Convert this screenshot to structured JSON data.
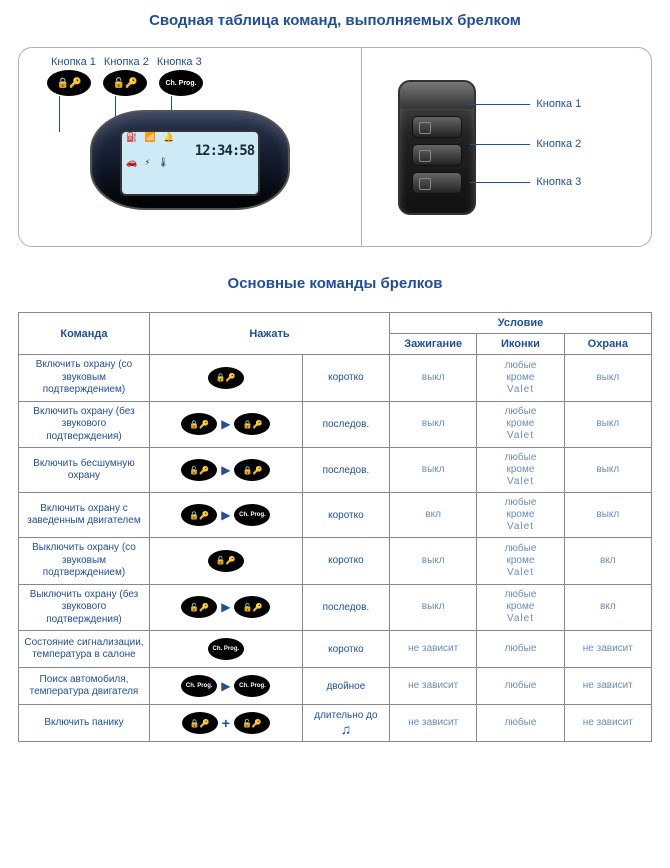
{
  "titles": {
    "main": "Сводная таблица команд, выполняемых брелком",
    "sub": "Основные команды брелков"
  },
  "diagram": {
    "left_labels": [
      "Кнопка 1",
      "Кнопка 2",
      "Кнопка 3"
    ],
    "oval_icons": [
      "🔒🔑",
      "🔓🔑",
      "Ch. Prog."
    ],
    "screen_time": "12:34:58",
    "screen_icons": "⛽ 📶 🔔",
    "screen_car_row": "🚗 ⚡ 🌡",
    "right_labels": [
      "Кнопка 1",
      "Кнопка 2",
      "Кнопка 3"
    ]
  },
  "table": {
    "headers": {
      "command": "Команда",
      "press": "Нажать",
      "condition": "Условие",
      "ignition": "Зажигание",
      "icons": "Иконки",
      "guard": "Охрана"
    },
    "icon_labels": {
      "b1": "🔒🔑",
      "b2": "🔓🔑",
      "b3": "Ch. Prog."
    },
    "valet_text": "любые кроме Valet",
    "rows": [
      {
        "cmd": "Включить охрану (со звуковым подтверждением)",
        "press": {
          "seq": [
            "b1"
          ],
          "join": ""
        },
        "dur": "коротко",
        "ign": "выкл",
        "ico": "valet",
        "gd": "выкл"
      },
      {
        "cmd": "Включить охрану (без звукового подтверждения)",
        "press": {
          "seq": [
            "b1",
            "b1"
          ],
          "join": "arrow"
        },
        "dur": "последов.",
        "ign": "выкл",
        "ico": "valet",
        "gd": "выкл"
      },
      {
        "cmd": "Включить бесшумную охрану",
        "press": {
          "seq": [
            "b2",
            "b1"
          ],
          "join": "arrow"
        },
        "dur": "последов.",
        "ign": "выкл",
        "ico": "valet",
        "gd": "выкл"
      },
      {
        "cmd": "Включить охрану с заведенным двигателем",
        "press": {
          "seq": [
            "b1",
            "b3"
          ],
          "join": "arrow"
        },
        "dur": "коротко",
        "ign": "вкл",
        "ico": "valet",
        "gd": "выкл"
      },
      {
        "cmd": "Выключить охрану (со звуковым подтверждением)",
        "press": {
          "seq": [
            "b2"
          ],
          "join": ""
        },
        "dur": "коротко",
        "ign": "выкл",
        "ico": "valet",
        "gd": "вкл"
      },
      {
        "cmd": "Выключить охрану (без звукового подтверждения)",
        "press": {
          "seq": [
            "b2",
            "b2"
          ],
          "join": "arrow"
        },
        "dur": "последов.",
        "ign": "выкл",
        "ico": "valet",
        "gd": "вкл"
      },
      {
        "cmd": "Состояние сигнализации, температура в салоне",
        "press": {
          "seq": [
            "b3"
          ],
          "join": ""
        },
        "dur": "коротко",
        "ign": "не зависит",
        "ico": "любые",
        "gd": "не зависит"
      },
      {
        "cmd": "Поиск автомобиля, температура двигателя",
        "press": {
          "seq": [
            "b3",
            "b3"
          ],
          "join": "arrow"
        },
        "dur": "двойное",
        "ign": "не зависит",
        "ico": "любые",
        "gd": "не зависит"
      },
      {
        "cmd": "Включить панику",
        "press": {
          "seq": [
            "b1",
            "b2"
          ],
          "join": "plus"
        },
        "dur": "длительно до ♫",
        "ign": "не зависит",
        "ico": "любые",
        "gd": "не зависит"
      }
    ]
  },
  "colors": {
    "heading": "#1f4e9b",
    "border": "#888888",
    "cond_text": "#6a8db8"
  }
}
